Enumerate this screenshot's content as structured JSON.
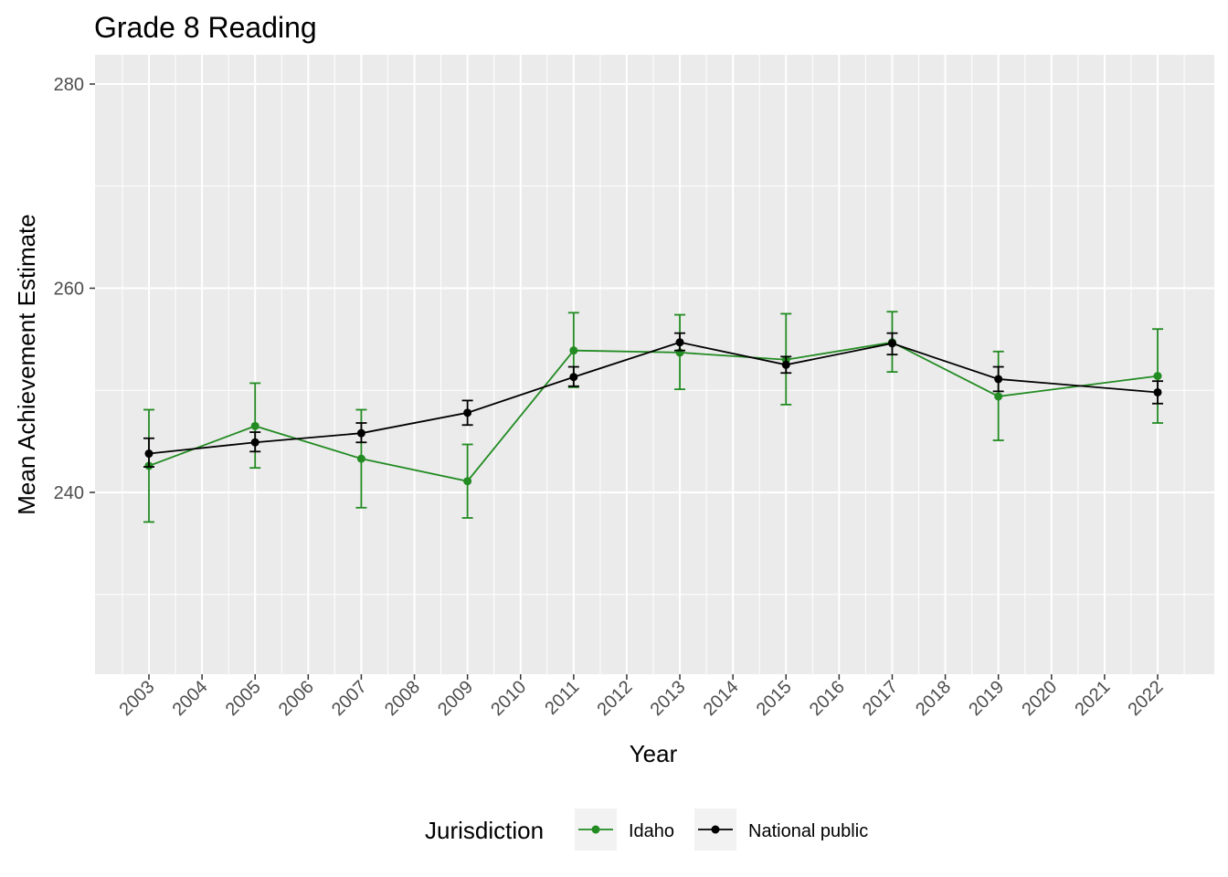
{
  "chart_data": {
    "type": "line",
    "title": "Grade 8 Reading",
    "xlabel": "Year",
    "ylabel": "Mean Achievement Estimate",
    "x_ticks": [
      "2003",
      "2004",
      "2005",
      "2006",
      "2007",
      "2008",
      "2009",
      "2010",
      "2011",
      "2012",
      "2013",
      "2014",
      "2015",
      "2016",
      "2017",
      "2018",
      "2019",
      "2020",
      "2021",
      "2022"
    ],
    "y_ticks": [
      240,
      260,
      280
    ],
    "ylim": [
      223,
      283
    ],
    "grid": true,
    "legend": {
      "title": "Jurisdiction",
      "position": "bottom",
      "entries": [
        "Idaho",
        "National public"
      ]
    },
    "series": [
      {
        "name": "Idaho",
        "color": "#228B22",
        "x": [
          2003,
          2005,
          2007,
          2009,
          2011,
          2013,
          2015,
          2017,
          2019,
          2022
        ],
        "y": [
          242.6,
          246.5,
          243.3,
          241.1,
          253.9,
          253.7,
          253.0,
          254.7,
          249.4,
          251.4
        ],
        "lower": [
          237.1,
          242.4,
          238.5,
          237.5,
          250.3,
          250.1,
          248.6,
          251.8,
          245.1,
          246.8
        ],
        "upper": [
          248.1,
          250.7,
          248.1,
          244.7,
          257.6,
          257.4,
          257.5,
          257.7,
          253.8,
          256.0
        ]
      },
      {
        "name": "National public",
        "color": "#000000",
        "x": [
          2003,
          2005,
          2007,
          2009,
          2011,
          2013,
          2015,
          2017,
          2019,
          2022
        ],
        "y": [
          243.8,
          244.9,
          245.8,
          247.8,
          251.3,
          254.7,
          252.5,
          254.6,
          251.1,
          249.8
        ],
        "lower": [
          242.5,
          244.0,
          244.9,
          246.6,
          250.4,
          253.9,
          251.7,
          253.5,
          249.9,
          248.7
        ],
        "upper": [
          245.3,
          245.9,
          246.8,
          249.0,
          252.3,
          255.6,
          253.3,
          255.6,
          252.3,
          250.9
        ]
      }
    ]
  }
}
